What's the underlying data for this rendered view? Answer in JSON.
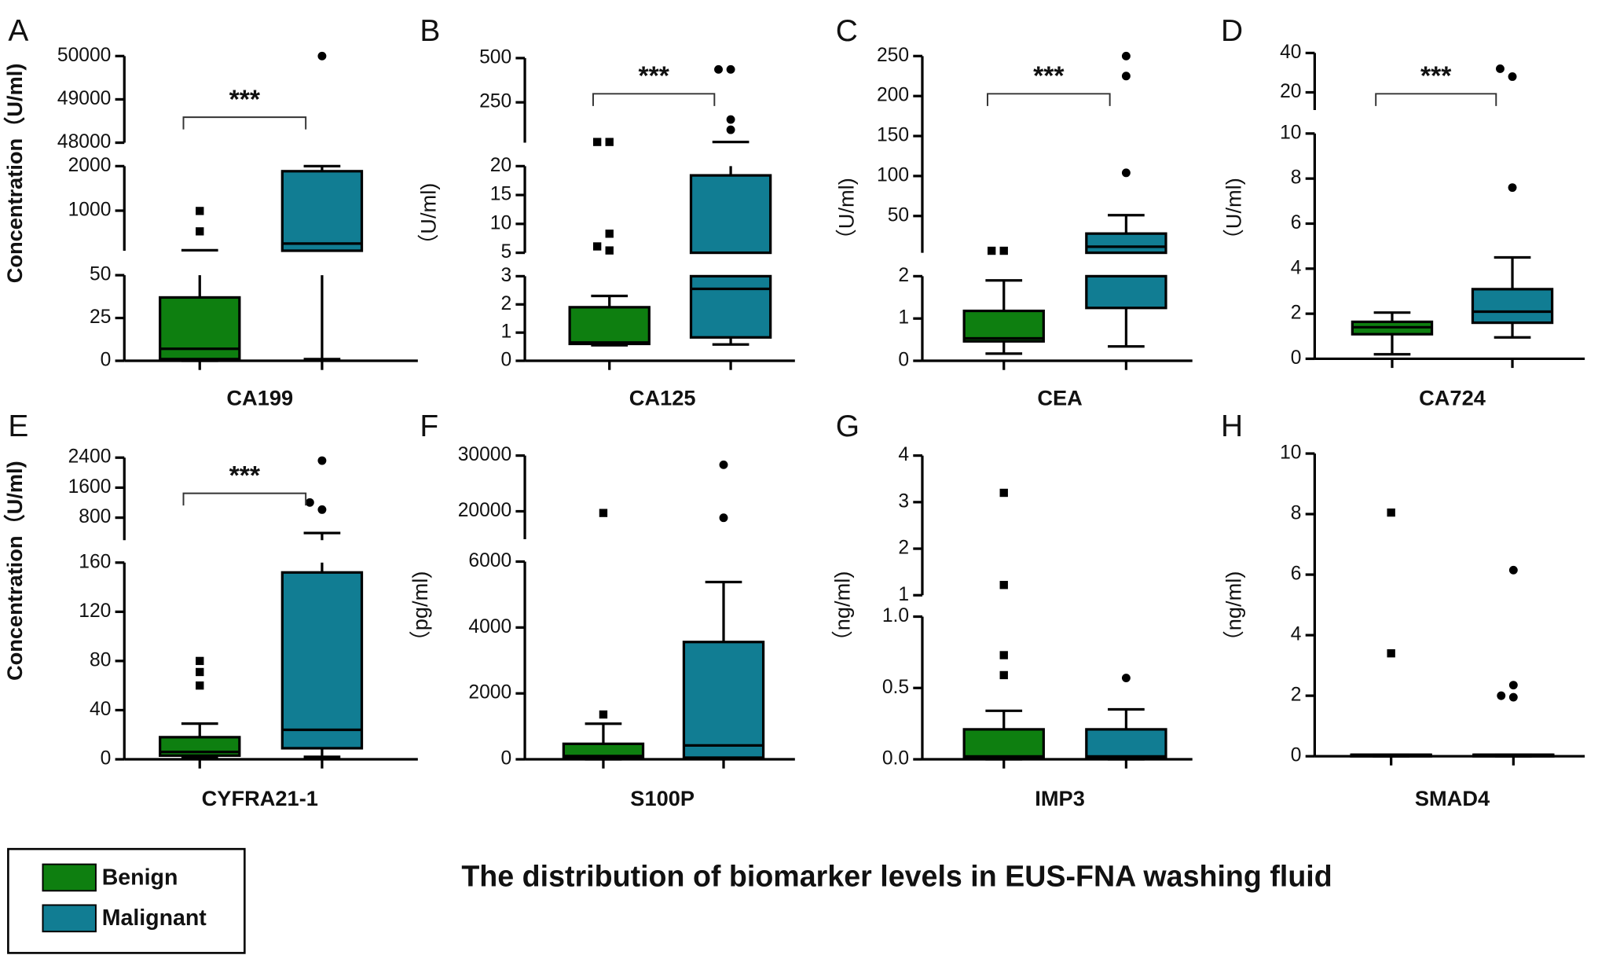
{
  "title": "The distribution of biomarker levels in EUS-FNA washing fluid",
  "series": [
    {
      "name": "Benign",
      "color": "#0e7f10",
      "marker": "square"
    },
    {
      "name": "Malignant",
      "color": "#117d93",
      "marker": "circle"
    }
  ],
  "chart_data": [
    {
      "type": "box",
      "label": "A",
      "ylabel": "Concentration（U/ml)",
      "xlabel": "CA199",
      "significance": "***",
      "segments": [
        {
          "ylim": [
            0,
            50
          ],
          "yticks": [
            0,
            25,
            50
          ]
        },
        {
          "ylim": [
            100,
            2000
          ],
          "yticks": [
            1000,
            2000
          ]
        },
        {
          "ylim": [
            48000,
            50000
          ],
          "yticks": [
            48000,
            49000,
            50000
          ]
        }
      ],
      "boxes": [
        {
          "min": 0,
          "q1": 1,
          "median": 7,
          "q3": 37,
          "max": 110,
          "outliers": [
            535,
            993
          ]
        },
        {
          "min": 1,
          "q1": 80,
          "median": 260,
          "q3": 1886,
          "max": 2000,
          "outliers": [
            50000
          ]
        }
      ]
    },
    {
      "type": "box",
      "label": "B",
      "ylabel": "（U/ml)",
      "xlabel": "CA125",
      "significance": "***",
      "segments": [
        {
          "ylim": [
            0,
            3
          ],
          "yticks": [
            0,
            1,
            2,
            3
          ]
        },
        {
          "ylim": [
            5,
            20
          ],
          "yticks": [
            5,
            10,
            15,
            20
          ]
        },
        {
          "ylim": [
            22,
            500
          ],
          "yticks": [
            250,
            500
          ]
        }
      ],
      "boxes": [
        {
          "min": 0.55,
          "q1": 0.6,
          "median": 0.65,
          "q3": 1.9,
          "max": 2.3,
          "outliers": [
            5.4,
            6.1,
            8.3,
            26,
            26
          ]
        },
        {
          "min": 0.58,
          "q1": 0.83,
          "median": 2.55,
          "q3": 18.4,
          "max": 26,
          "outliers": [
            95,
            153,
            436,
            436
          ]
        }
      ]
    },
    {
      "type": "box",
      "label": "C",
      "ylabel": "（U/ml)",
      "xlabel": "CEA",
      "significance": "***",
      "segments": [
        {
          "ylim": [
            0,
            2
          ],
          "yticks": [
            0,
            1,
            2
          ]
        },
        {
          "ylim": [
            4,
            250
          ],
          "yticks": [
            50,
            100,
            150,
            200,
            250
          ]
        }
      ],
      "boxes": [
        {
          "min": 0.17,
          "q1": 0.46,
          "median": 0.53,
          "q3": 1.18,
          "max": 1.9,
          "outliers": [
            6.5,
            6.5
          ]
        },
        {
          "min": 0.34,
          "q1": 1.25,
          "median": 11.6,
          "q3": 28,
          "max": 51,
          "outliers": [
            104,
            225,
            250
          ]
        }
      ]
    },
    {
      "type": "box",
      "label": "D",
      "ylabel": "（U/ml)",
      "xlabel": "CA724",
      "significance": "***",
      "segments": [
        {
          "ylim": [
            0,
            10
          ],
          "yticks": [
            0,
            2,
            4,
            6,
            8,
            10
          ]
        },
        {
          "ylim": [
            11,
            40
          ],
          "yticks": [
            20,
            40
          ]
        }
      ],
      "boxes": [
        {
          "min": 0.2,
          "q1": 1.09,
          "median": 1.4,
          "q3": 1.64,
          "max": 2.05,
          "outliers": []
        },
        {
          "min": 0.95,
          "q1": 1.6,
          "median": 2.09,
          "q3": 3.09,
          "max": 4.5,
          "outliers": [
            7.6,
            28,
            32
          ]
        }
      ]
    },
    {
      "type": "box",
      "label": "E",
      "ylabel": "Concentration（U/ml)",
      "xlabel": "CYFRA21-1",
      "significance": "***",
      "segments": [
        {
          "ylim": [
            0,
            160
          ],
          "yticks": [
            0,
            40,
            80,
            120,
            160
          ]
        },
        {
          "ylim": [
            200,
            2400
          ],
          "yticks": [
            800,
            1600,
            2400
          ]
        }
      ],
      "boxes": [
        {
          "min": 2,
          "q1": 3,
          "median": 6,
          "q3": 18,
          "max": 29,
          "outliers": [
            60,
            71,
            80
          ]
        },
        {
          "min": 2,
          "q1": 9,
          "median": 24,
          "q3": 152,
          "max": 390,
          "outliers": [
            1015,
            1205,
            2320
          ]
        }
      ]
    },
    {
      "type": "box",
      "label": "F",
      "ylabel": "（pg/ml)",
      "xlabel": "S100P",
      "segments": [
        {
          "ylim": [
            0,
            6000
          ],
          "yticks": [
            0,
            2000,
            4000,
            6000
          ]
        },
        {
          "ylim": [
            15000,
            30000
          ],
          "yticks": [
            20000,
            30000
          ]
        }
      ],
      "boxes": [
        {
          "min": 0,
          "q1": 30,
          "median": 100,
          "q3": 470,
          "max": 1080,
          "outliers": [
            1360,
            19700
          ]
        },
        {
          "min": 20,
          "q1": 50,
          "median": 420,
          "q3": 3560,
          "max": 5380,
          "outliers": [
            18840,
            28350
          ]
        }
      ]
    },
    {
      "type": "box",
      "label": "G",
      "ylabel": "（ng/ml)",
      "xlabel": "IMP3",
      "segments": [
        {
          "ylim": [
            0,
            1
          ],
          "yticks": [
            {
              "value": 0,
              "label": "0.0"
            },
            0.5,
            {
              "value": 1,
              "label": "1.0"
            }
          ]
        },
        {
          "ylim": [
            1,
            4
          ],
          "yticks": [
            1,
            2,
            3,
            4
          ]
        }
      ],
      "boxes": [
        {
          "min": 0,
          "q1": 0.01,
          "median": 0.02,
          "q3": 0.21,
          "max": 0.34,
          "outliers": [
            0.59,
            0.73,
            1.22,
            3.2
          ]
        },
        {
          "min": 0,
          "q1": 0.01,
          "median": 0.02,
          "q3": 0.21,
          "max": 0.35,
          "outliers": [
            0.57
          ]
        }
      ]
    },
    {
      "type": "box",
      "label": "H",
      "ylabel": "（ng/ml)",
      "xlabel": "SMAD4",
      "segments": [
        {
          "ylim": [
            0,
            10
          ],
          "yticks": [
            0,
            2,
            4,
            6,
            8,
            10
          ]
        }
      ],
      "boxes": [
        {
          "min": 0,
          "q1": 0,
          "median": 0.05,
          "q3": 0.05,
          "max": 0.05,
          "outliers": [
            3.4,
            8.05
          ]
        },
        {
          "min": 0,
          "q1": 0,
          "median": 0.05,
          "q3": 0.05,
          "max": 0.05,
          "outliers": [
            1.95,
            2.0,
            2.35,
            6.15
          ]
        }
      ]
    }
  ]
}
